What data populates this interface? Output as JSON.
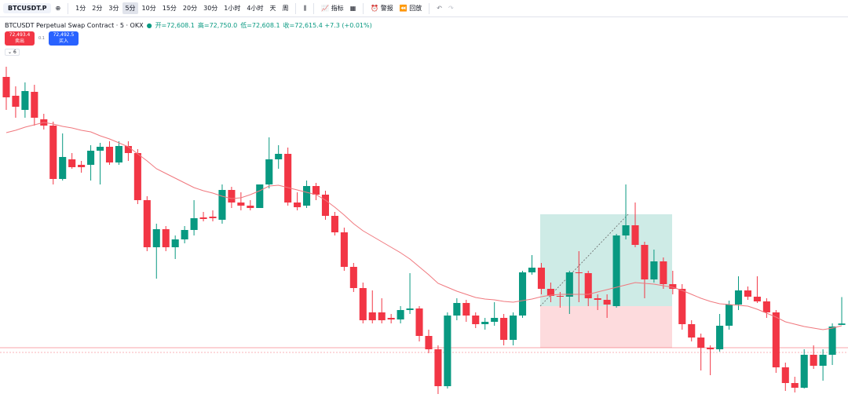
{
  "toolbar": {
    "symbol": "BTCUSDT.P",
    "intervals": [
      "1分",
      "2分",
      "3分",
      "5分",
      "10分",
      "15分",
      "20分",
      "30分",
      "1小时",
      "4小时",
      "天",
      "周"
    ],
    "active_interval": "5分",
    "indicators": "指标",
    "alert": "警报",
    "replay": "回放"
  },
  "legend": {
    "title": "BTCUSDT Perpetual Swap Contract · 5 · OKX",
    "open": "开=72,608.1",
    "high": "高=72,750.0",
    "low": "低=72,608.1",
    "close": "收=72,615.4 +7.3 (+0.01%)"
  },
  "trade": {
    "sell_price": "72,493.4",
    "sell_label": "卖出",
    "spread": "0.1",
    "buy_price": "72,492.5",
    "buy_label": "买入"
  },
  "indicator_count": "6",
  "chart_data": {
    "type": "candlestick",
    "up_color": "#089981",
    "down_color": "#f23645",
    "ma_color": "#f0787e",
    "ylim": [
      72144,
      74176
    ],
    "ohlc": [
      [
        73872,
        73924,
        73704,
        73768
      ],
      [
        73776,
        73824,
        73664,
        73720
      ],
      [
        73704,
        73844,
        73664,
        73800
      ],
      [
        73796,
        73832,
        73624,
        73664
      ],
      [
        73656,
        73684,
        73604,
        73624
      ],
      [
        73624,
        73644,
        73324,
        73352
      ],
      [
        73352,
        73584,
        73344,
        73464
      ],
      [
        73452,
        73484,
        73404,
        73412
      ],
      [
        73424,
        73444,
        73384,
        73412
      ],
      [
        73424,
        73524,
        73344,
        73496
      ],
      [
        73496,
        73536,
        73324,
        73516
      ],
      [
        73516,
        73544,
        73424,
        73436
      ],
      [
        73436,
        73544,
        73424,
        73520
      ],
      [
        73520,
        73544,
        73444,
        73484
      ],
      [
        73484,
        73504,
        73224,
        73244
      ],
      [
        73244,
        73264,
        72984,
        73004
      ],
      [
        73004,
        73124,
        72844,
        73096
      ],
      [
        73096,
        73112,
        72984,
        73004
      ],
      [
        73004,
        73064,
        72944,
        73044
      ],
      [
        73044,
        73112,
        73024,
        73092
      ],
      [
        73092,
        73244,
        73064,
        73152
      ],
      [
        73156,
        73184,
        73136,
        73148
      ],
      [
        73160,
        73192,
        73136,
        73152
      ],
      [
        73144,
        73324,
        73124,
        73296
      ],
      [
        73296,
        73312,
        73204,
        73232
      ],
      [
        73232,
        73284,
        73192,
        73216
      ],
      [
        73216,
        73244,
        73192,
        73204
      ],
      [
        73204,
        73324,
        73204,
        73324
      ],
      [
        73324,
        73564,
        73304,
        73452
      ],
      [
        73452,
        73524,
        73404,
        73480
      ],
      [
        73480,
        73512,
        73216,
        73232
      ],
      [
        73232,
        73284,
        73192,
        73208
      ],
      [
        73216,
        73344,
        73204,
        73316
      ],
      [
        73316,
        73332,
        73244,
        73272
      ],
      [
        73272,
        73292,
        73144,
        73164
      ],
      [
        73164,
        73184,
        73064,
        73080
      ],
      [
        73080,
        73104,
        72884,
        72904
      ],
      [
        72904,
        72924,
        72776,
        72796
      ],
      [
        72796,
        72824,
        72616,
        72632
      ],
      [
        72672,
        72784,
        72616,
        72632
      ],
      [
        72672,
        72744,
        72616,
        72632
      ],
      [
        72644,
        72664,
        72616,
        72636
      ],
      [
        72636,
        72704,
        72616,
        72684
      ],
      [
        72684,
        72872,
        72664,
        72692
      ],
      [
        72692,
        72704,
        72524,
        72552
      ],
      [
        72552,
        72584,
        72464,
        72484
      ],
      [
        72484,
        72504,
        72256,
        72296
      ],
      [
        72296,
        72672,
        72284,
        72656
      ],
      [
        72656,
        72744,
        72632,
        72720
      ],
      [
        72720,
        72736,
        72624,
        72656
      ],
      [
        72656,
        72672,
        72592,
        72612
      ],
      [
        72612,
        72644,
        72584,
        72624
      ],
      [
        72624,
        72724,
        72604,
        72644
      ],
      [
        72644,
        72664,
        72504,
        72532
      ],
      [
        72532,
        72672,
        72504,
        72656
      ],
      [
        72656,
        72884,
        72644,
        72876
      ],
      [
        72876,
        72964,
        72864,
        72900
      ],
      [
        72900,
        72924,
        72764,
        72792
      ],
      [
        72792,
        72824,
        72724,
        72756
      ],
      [
        72756,
        72776,
        72696,
        72752
      ],
      [
        72752,
        72884,
        72664,
        72876
      ],
      [
        72876,
        72984,
        72724,
        72872
      ],
      [
        72872,
        72884,
        72704,
        72744
      ],
      [
        72744,
        72764,
        72684,
        72736
      ],
      [
        72736,
        72764,
        72644,
        72712
      ],
      [
        72704,
        73072,
        72696,
        73064
      ],
      [
        73064,
        73324,
        73044,
        73116
      ],
      [
        73116,
        73232,
        73004,
        73016
      ],
      [
        73016,
        73032,
        72744,
        72840
      ],
      [
        72840,
        72992,
        72824,
        72932
      ],
      [
        72932,
        72952,
        72792,
        72816
      ],
      [
        72816,
        72884,
        72764,
        72792
      ],
      [
        72792,
        72816,
        72584,
        72612
      ],
      [
        72612,
        72632,
        72524,
        72544
      ],
      [
        72544,
        72564,
        72376,
        72492
      ],
      [
        72492,
        72504,
        72352,
        72484
      ],
      [
        72484,
        72664,
        72472,
        72604
      ],
      [
        72604,
        72732,
        72584,
        72712
      ],
      [
        72712,
        72856,
        72684,
        72784
      ],
      [
        72784,
        72804,
        72736,
        72752
      ],
      [
        72752,
        72856,
        72720,
        72728
      ],
      [
        72728,
        72744,
        72644,
        72672
      ],
      [
        72672,
        72684,
        72364,
        72392
      ],
      [
        72392,
        72416,
        72272,
        72312
      ],
      [
        72312,
        72344,
        72264,
        72288
      ],
      [
        72288,
        72484,
        72284,
        72456
      ],
      [
        72456,
        72504,
        72384,
        72400
      ],
      [
        72400,
        72484,
        72324,
        72456
      ],
      [
        72456,
        72616,
        72404,
        72600
      ],
      [
        72608.1,
        72750,
        72608.1,
        72615.4
      ]
    ],
    "ma": [
      73588,
      73600,
      73616,
      73628,
      73640,
      73632,
      73620,
      73612,
      73600,
      73592,
      73572,
      73556,
      73536,
      73516,
      73480,
      73444,
      73404,
      73380,
      73356,
      73332,
      73308,
      73292,
      73280,
      73264,
      73252,
      73256,
      73272,
      73292,
      73316,
      73320,
      73308,
      73296,
      73284,
      73272,
      73244,
      73208,
      73168,
      73124,
      73088,
      73060,
      73032,
      73004,
      72976,
      72944,
      72904,
      72864,
      72820,
      72800,
      72780,
      72764,
      72748,
      72740,
      72736,
      72728,
      72724,
      72732,
      72740,
      72752,
      72760,
      72764,
      72764,
      72764,
      72764,
      72776,
      72788,
      72800,
      72812,
      72824,
      72820,
      72816,
      72808,
      72800,
      72784,
      72764,
      72744,
      72728,
      72716,
      72712,
      72708,
      72704,
      72688,
      72668,
      72648,
      72624,
      72612,
      72600,
      72592,
      72584,
      72592,
      72604
    ]
  }
}
